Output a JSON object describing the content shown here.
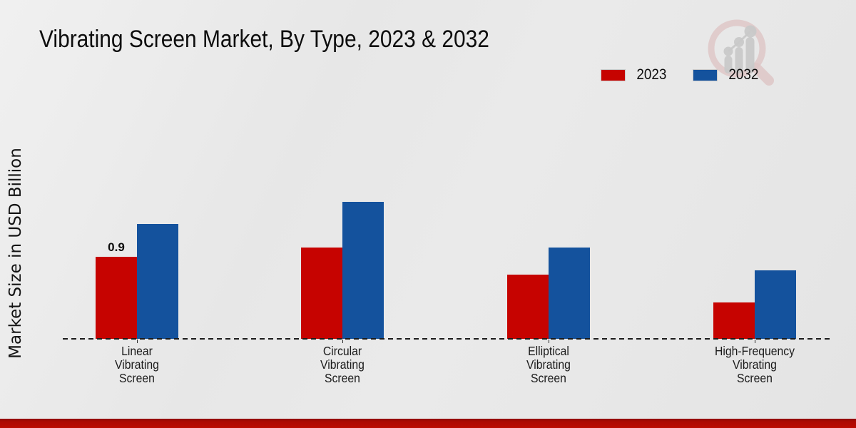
{
  "title": "Vibrating Screen Market, By Type, 2023 & 2032",
  "ylabel": "Market Size in USD Billion",
  "legend": [
    {
      "label": "2023",
      "color": "#c60300"
    },
    {
      "label": "2032",
      "color": "#14529d"
    }
  ],
  "colors": {
    "series_2023": "#c60300",
    "series_2032": "#14529d",
    "footer_band": "#bb0b01",
    "background": "#e8e8e8",
    "baseline": "#1b1b1b"
  },
  "logo": {
    "name": "magnifier-bar-chart-watermark"
  },
  "chart_data": {
    "type": "bar",
    "title": "Vibrating Screen Market, By Type, 2023 & 2032",
    "xlabel": "",
    "ylabel": "Market Size in USD Billion",
    "categories": [
      "Linear Vibrating Screen",
      "Circular Vibrating Screen",
      "Elliptical Vibrating Screen",
      "High-Frequency Vibrating Screen"
    ],
    "series": [
      {
        "name": "2023",
        "color": "#c60300",
        "values": [
          0.9,
          1.0,
          0.7,
          0.4
        ],
        "data_labels": [
          "0.9",
          "",
          "",
          ""
        ]
      },
      {
        "name": "2032",
        "color": "#14529d",
        "values": [
          1.26,
          1.5,
          1.0,
          0.75
        ],
        "data_labels": [
          "",
          "",
          "",
          ""
        ]
      }
    ],
    "ylim": [
      0,
      1.6
    ],
    "grid": false,
    "y_axis_ticks_visible": false,
    "baseline_style": "dashed",
    "legend_position": "top-right"
  }
}
